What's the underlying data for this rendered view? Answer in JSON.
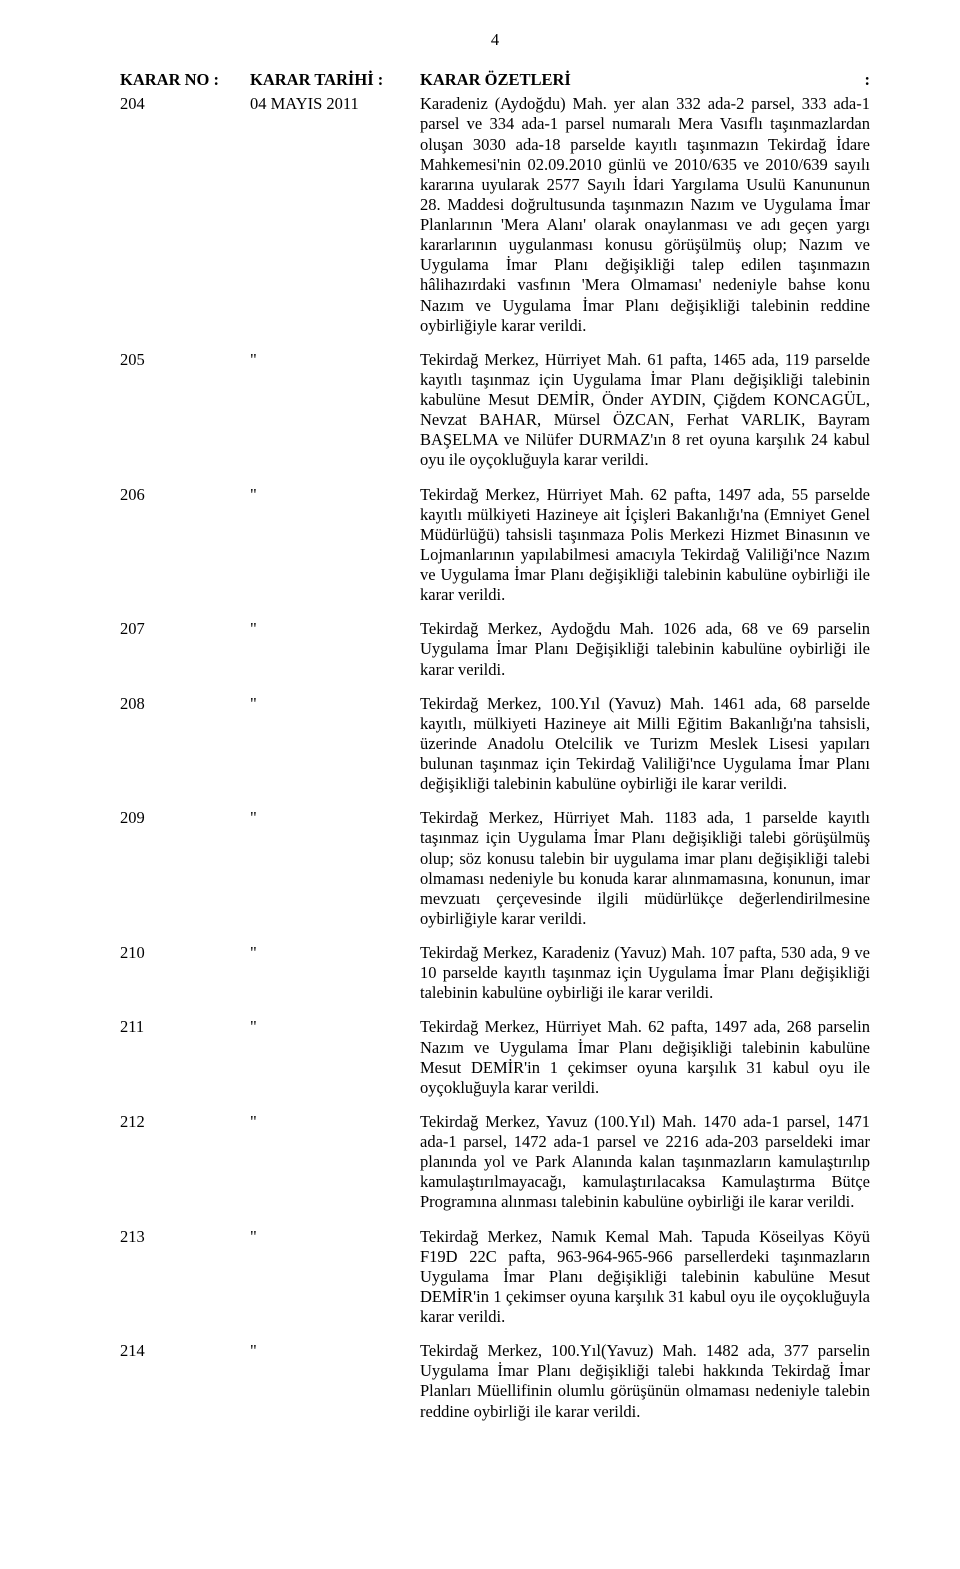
{
  "page_number": "4",
  "header": {
    "col_no": "KARAR NO :",
    "col_date": "KARAR TARİHİ :",
    "col_body_left": "KARAR ÖZETLERİ",
    "col_body_right": ":"
  },
  "rows": [
    {
      "no": "204",
      "date": "04 MAYIS 2011",
      "body": "Karadeniz (Aydoğdu) Mah. yer alan 332 ada-2 parsel, 333 ada-1 parsel ve 334 ada-1 parsel numaralı Mera Vasıflı taşınmazlardan oluşan 3030 ada-18 parselde kayıtlı taşınmazın Tekirdağ İdare Mahkemesi'nin 02.09.2010 günlü ve 2010/635 ve 2010/639 sayılı kararına uyularak 2577 Sayılı İdari Yargılama Usulü Kanununun 28. Maddesi doğrultusunda taşınmazın Nazım ve Uygulama İmar Planlarının 'Mera Alanı' olarak onaylanması ve adı geçen yargı kararlarının uygulanması konusu görüşülmüş olup; Nazım ve Uygulama İmar Planı değişikliği talep edilen taşınmazın hâlihazırdaki vasfının 'Mera Olmaması' nedeniyle bahse konu Nazım ve Uygulama İmar Planı değişikliği talebinin reddine oybirliğiyle karar verildi."
    },
    {
      "no": "205",
      "date": "\"",
      "body": "Tekirdağ Merkez, Hürriyet Mah. 61 pafta, 1465 ada, 119 parselde kayıtlı taşınmaz için Uygulama İmar Planı değişikliği talebinin kabulüne Mesut DEMİR, Önder AYDIN, Çiğdem KONCAGÜL, Nevzat BAHAR, Mürsel ÖZCAN, Ferhat VARLIK, Bayram BAŞELMA ve Nilüfer DURMAZ'ın 8 ret oyuna karşılık 24 kabul oyu ile oyçokluğuyla karar verildi."
    },
    {
      "no": "206",
      "date": "\"",
      "body": "Tekirdağ Merkez, Hürriyet Mah. 62 pafta, 1497 ada, 55 parselde kayıtlı mülkiyeti Hazineye ait İçişleri Bakanlığı'na (Emniyet Genel Müdürlüğü) tahsisli taşınmaza Polis Merkezi Hizmet Binasının ve Lojmanlarının yapılabilmesi amacıyla Tekirdağ Valiliği'nce Nazım ve Uygulama İmar Planı değişikliği talebinin kabulüne oybirliği ile karar verildi."
    },
    {
      "no": "207",
      "date": "\"",
      "body": "Tekirdağ Merkez, Aydoğdu Mah. 1026 ada, 68 ve 69 parselin Uygulama İmar Planı Değişikliği talebinin kabulüne oybirliği ile karar verildi."
    },
    {
      "no": "208",
      "date": "\"",
      "body": "Tekirdağ Merkez, 100.Yıl (Yavuz) Mah. 1461 ada, 68 parselde kayıtlı, mülkiyeti Hazineye ait Milli Eğitim Bakanlığı'na tahsisli, üzerinde Anadolu Otelcilik ve Turizm Meslek Lisesi yapıları bulunan taşınmaz için Tekirdağ Valiliği'nce Uygulama İmar Planı değişikliği talebinin kabulüne oybirliği ile karar verildi."
    },
    {
      "no": "209",
      "date": "\"",
      "body": "Tekirdağ Merkez, Hürriyet Mah. 1183 ada, 1 parselde kayıtlı taşınmaz için Uygulama İmar Planı değişikliği talebi görüşülmüş olup;  söz konusu talebin bir uygulama imar planı değişikliği talebi olmaması nedeniyle bu konuda karar alınmamasına, konunun, imar mevzuatı çerçevesinde ilgili müdürlükçe değerlendirilmesine oybirliğiyle karar verildi."
    },
    {
      "no": "210",
      "date": "\"",
      "body": "Tekirdağ Merkez, Karadeniz (Yavuz) Mah. 107 pafta, 530 ada, 9 ve 10 parselde kayıtlı taşınmaz için Uygulama İmar Planı değişikliği talebinin kabulüne oybirliği ile karar verildi."
    },
    {
      "no": "211",
      "date": "\"",
      "body": "Tekirdağ Merkez, Hürriyet Mah. 62 pafta, 1497 ada, 268 parselin Nazım ve Uygulama İmar Planı değişikliği talebinin kabulüne Mesut DEMİR'in 1 çekimser oyuna karşılık 31 kabul oyu ile oyçokluğuyla karar verildi."
    },
    {
      "no": "212",
      "date": "\"",
      "body": "Tekirdağ Merkez, Yavuz (100.Yıl) Mah. 1470 ada-1 parsel, 1471 ada-1 parsel, 1472 ada-1 parsel ve 2216 ada-203 parseldeki imar planında yol ve Park Alanında kalan taşınmazların kamulaştırılıp kamulaştırılmayacağı, kamulaştırılacaksa Kamulaştırma Bütçe Programına alınması talebinin kabulüne oybirliği ile karar verildi."
    },
    {
      "no": "213",
      "date": "\"",
      "body": "Tekirdağ Merkez, Namık Kemal Mah. Tapuda Köseilyas Köyü F19D 22C pafta, 963-964-965-966 parsellerdeki taşınmazların Uygulama İmar Planı değişikliği talebinin kabulüne Mesut DEMİR'in 1 çekimser oyuna karşılık 31 kabul oyu ile oyçokluğuyla karar verildi."
    },
    {
      "no": "214",
      "date": "\"",
      "body": "Tekirdağ Merkez, 100.Yıl(Yavuz) Mah. 1482 ada, 377 parselin Uygulama İmar Planı değişikliği talebi hakkında Tekirdağ İmar Planları Müellifinin olumlu görüşünün olmaması nedeniyle talebin reddine oybirliği ile karar verildi."
    }
  ]
}
